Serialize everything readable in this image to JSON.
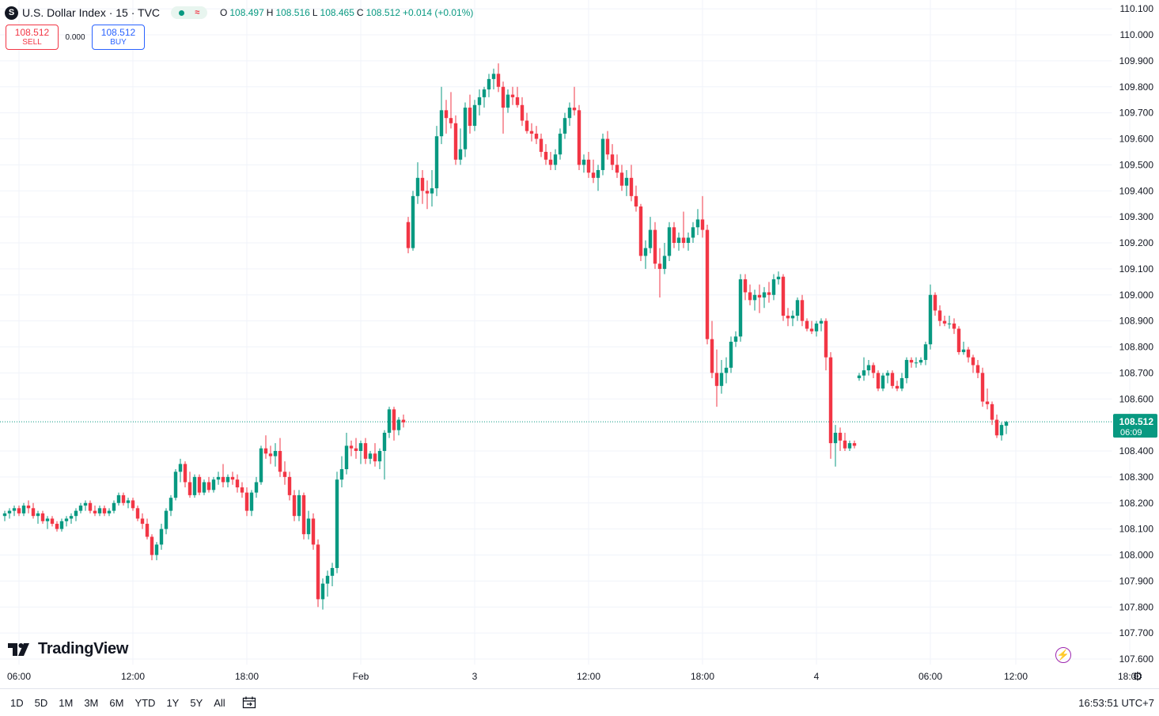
{
  "header": {
    "symbol_icon": "S",
    "title": "U.S. Dollar Index · 15 · TVC",
    "ohlc": {
      "o_label": "O",
      "o": "108.497",
      "h_label": "H",
      "h": "108.516",
      "l_label": "L",
      "l": "108.465",
      "c_label": "C",
      "c": "108.512",
      "change": "+0.014 (+0.01%)"
    }
  },
  "trade": {
    "sell_price": "108.512",
    "sell_label": "SELL",
    "spread": "0.000",
    "buy_price": "108.512",
    "buy_label": "BUY"
  },
  "logo_text": "TradingView",
  "range_buttons": [
    "1D",
    "5D",
    "1M",
    "3M",
    "6M",
    "YTD",
    "1Y",
    "5Y",
    "All"
  ],
  "clock": "16:53:51 UTC+7",
  "colors": {
    "up": "#089981",
    "down": "#f23645",
    "grid": "#f0f3fa",
    "sell": "#f23645",
    "buy": "#2962ff"
  },
  "chart_data": {
    "type": "candlestick",
    "title": "U.S. Dollar Index · 15 · TVC",
    "ylim": [
      107.57,
      110.13
    ],
    "y_ticks": [
      "110.100",
      "110.000",
      "109.900",
      "109.800",
      "109.700",
      "109.600",
      "109.500",
      "109.400",
      "109.300",
      "109.200",
      "109.100",
      "109.000",
      "108.900",
      "108.800",
      "108.700",
      "108.600",
      "108.400",
      "108.300",
      "108.200",
      "108.100",
      "108.000",
      "107.900",
      "107.800",
      "107.700",
      "107.600"
    ],
    "x_ticks": [
      {
        "label": "06:00",
        "idx": 0
      },
      {
        "label": "12:00",
        "idx": 24
      },
      {
        "label": "18:00",
        "idx": 48
      },
      {
        "label": "Feb",
        "idx": 72
      },
      {
        "label": "3",
        "idx": 96
      },
      {
        "label": "12:00",
        "idx": 120
      },
      {
        "label": "18:00",
        "idx": 144
      },
      {
        "label": "4",
        "idx": 168
      },
      {
        "label": "06:00",
        "idx": 192
      },
      {
        "label": "12:00",
        "idx": 210
      },
      {
        "label": "18:00",
        "idx": 234
      }
    ],
    "last_price": "108.512",
    "countdown": "06:09",
    "grid": true,
    "candles": [
      [
        108.15,
        108.17,
        108.13,
        108.16
      ],
      [
        108.16,
        108.18,
        108.14,
        108.17
      ],
      [
        108.17,
        108.19,
        108.15,
        108.18
      ],
      [
        108.18,
        108.19,
        108.15,
        108.16
      ],
      [
        108.16,
        108.2,
        108.15,
        108.19
      ],
      [
        108.19,
        108.21,
        108.16,
        108.18
      ],
      [
        108.18,
        108.2,
        108.14,
        108.15
      ],
      [
        108.15,
        108.17,
        108.12,
        108.16
      ],
      [
        108.16,
        108.17,
        108.12,
        108.13
      ],
      [
        108.13,
        108.15,
        108.1,
        108.14
      ],
      [
        108.14,
        108.15,
        108.11,
        108.12
      ],
      [
        108.12,
        108.13,
        108.09,
        108.1
      ],
      [
        108.1,
        108.14,
        108.09,
        108.13
      ],
      [
        108.13,
        108.15,
        108.11,
        108.14
      ],
      [
        108.14,
        108.16,
        108.12,
        108.15
      ],
      [
        108.15,
        108.18,
        108.13,
        108.17
      ],
      [
        108.17,
        108.2,
        108.16,
        108.19
      ],
      [
        108.19,
        108.21,
        108.17,
        108.2
      ],
      [
        108.2,
        108.21,
        108.16,
        108.17
      ],
      [
        108.17,
        108.19,
        108.15,
        108.16
      ],
      [
        108.16,
        108.19,
        108.15,
        108.18
      ],
      [
        108.18,
        108.19,
        108.15,
        108.16
      ],
      [
        108.16,
        108.18,
        108.15,
        108.17
      ],
      [
        108.17,
        108.21,
        108.16,
        108.2
      ],
      [
        108.2,
        108.24,
        108.19,
        108.23
      ],
      [
        108.23,
        108.24,
        108.19,
        108.2
      ],
      [
        108.2,
        108.22,
        108.18,
        108.21
      ],
      [
        108.21,
        108.22,
        108.17,
        108.18
      ],
      [
        108.18,
        108.19,
        108.13,
        108.14
      ],
      [
        108.14,
        108.16,
        108.1,
        108.12
      ],
      [
        108.12,
        108.14,
        108.06,
        108.07
      ],
      [
        108.07,
        108.08,
        107.98,
        108.0
      ],
      [
        108.0,
        108.05,
        107.98,
        108.04
      ],
      [
        108.04,
        108.12,
        108.02,
        108.1
      ],
      [
        108.1,
        108.18,
        108.08,
        108.17
      ],
      [
        108.17,
        108.23,
        108.15,
        108.22
      ],
      [
        108.22,
        108.33,
        108.21,
        108.32
      ],
      [
        108.32,
        108.37,
        108.28,
        108.35
      ],
      [
        108.35,
        108.36,
        108.26,
        108.28
      ],
      [
        108.28,
        108.32,
        108.22,
        108.23
      ],
      [
        108.23,
        108.31,
        108.22,
        108.3
      ],
      [
        108.3,
        108.31,
        108.23,
        108.24
      ],
      [
        108.24,
        108.29,
        108.23,
        108.28
      ],
      [
        108.28,
        108.3,
        108.24,
        108.25
      ],
      [
        108.25,
        108.3,
        108.24,
        108.29
      ],
      [
        108.29,
        108.32,
        108.27,
        108.3
      ],
      [
        108.3,
        108.35,
        108.26,
        108.28
      ],
      [
        108.28,
        108.31,
        108.26,
        108.3
      ],
      [
        108.3,
        108.32,
        108.27,
        108.29
      ],
      [
        108.29,
        108.31,
        108.24,
        108.26
      ],
      [
        108.26,
        108.28,
        108.22,
        108.24
      ],
      [
        108.24,
        108.26,
        108.15,
        108.17
      ],
      [
        108.17,
        108.25,
        108.15,
        108.24
      ],
      [
        108.24,
        108.3,
        108.22,
        108.28
      ],
      [
        108.28,
        108.42,
        108.27,
        108.41
      ],
      [
        108.41,
        108.46,
        108.37,
        108.39
      ],
      [
        108.39,
        108.42,
        108.35,
        108.38
      ],
      [
        108.38,
        108.43,
        108.34,
        108.4
      ],
      [
        108.4,
        108.45,
        108.3,
        108.32
      ],
      [
        108.32,
        108.36,
        108.27,
        108.3
      ],
      [
        108.3,
        108.32,
        108.21,
        108.23
      ],
      [
        108.23,
        108.25,
        108.13,
        108.15
      ],
      [
        108.15,
        108.25,
        108.13,
        108.23
      ],
      [
        108.23,
        108.24,
        108.06,
        108.08
      ],
      [
        108.08,
        108.17,
        108.06,
        108.14
      ],
      [
        108.14,
        108.16,
        108.02,
        108.04
      ],
      [
        108.04,
        108.06,
        107.8,
        107.83
      ],
      [
        107.83,
        107.91,
        107.79,
        107.89
      ],
      [
        107.89,
        107.94,
        107.84,
        107.92
      ],
      [
        107.92,
        107.97,
        107.88,
        107.95
      ],
      [
        107.95,
        108.32,
        107.93,
        108.29
      ],
      [
        108.29,
        108.38,
        108.26,
        108.33
      ],
      [
        108.33,
        108.47,
        108.31,
        108.42
      ],
      [
        108.42,
        108.44,
        108.38,
        108.41
      ],
      [
        108.41,
        108.45,
        108.37,
        108.4
      ],
      [
        108.4,
        108.44,
        108.35,
        108.43
      ],
      [
        108.43,
        108.45,
        108.35,
        108.37
      ],
      [
        108.37,
        108.4,
        108.35,
        108.39
      ],
      [
        108.39,
        108.43,
        108.34,
        108.36
      ],
      [
        108.36,
        108.41,
        108.33,
        108.4
      ],
      [
        108.4,
        108.48,
        108.29,
        108.47
      ],
      [
        108.47,
        108.57,
        108.45,
        108.56
      ],
      [
        108.56,
        108.57,
        108.44,
        108.48
      ],
      [
        108.48,
        108.53,
        108.46,
        108.52
      ],
      [
        108.52,
        108.54,
        108.49,
        108.51
      ],
      [
        109.28,
        109.3,
        109.16,
        109.18
      ],
      [
        109.18,
        109.4,
        109.17,
        109.38
      ],
      [
        109.38,
        109.51,
        109.35,
        109.45
      ],
      [
        109.45,
        109.48,
        109.35,
        109.4
      ],
      [
        109.4,
        109.44,
        109.33,
        109.39
      ],
      [
        109.39,
        109.48,
        109.34,
        109.41
      ],
      [
        109.41,
        109.65,
        109.38,
        109.61
      ],
      [
        109.61,
        109.8,
        109.58,
        109.71
      ],
      [
        109.71,
        109.75,
        109.62,
        109.68
      ],
      [
        109.68,
        109.78,
        109.64,
        109.66
      ],
      [
        109.66,
        109.69,
        109.5,
        109.52
      ],
      [
        109.52,
        109.64,
        109.5,
        109.56
      ],
      [
        109.56,
        109.74,
        109.53,
        109.72
      ],
      [
        109.72,
        109.77,
        109.62,
        109.65
      ],
      [
        109.65,
        109.75,
        109.63,
        109.73
      ],
      [
        109.73,
        109.79,
        109.69,
        109.76
      ],
      [
        109.76,
        109.8,
        109.72,
        109.79
      ],
      [
        109.79,
        109.85,
        109.76,
        109.83
      ],
      [
        109.83,
        109.87,
        109.79,
        109.85
      ],
      [
        109.85,
        109.89,
        109.78,
        109.8
      ],
      [
        109.8,
        109.82,
        109.62,
        109.72
      ],
      [
        109.72,
        109.79,
        109.7,
        109.77
      ],
      [
        109.77,
        109.8,
        109.73,
        109.76
      ],
      [
        109.76,
        109.8,
        109.72,
        109.73
      ],
      [
        109.73,
        109.76,
        109.65,
        109.67
      ],
      [
        109.67,
        109.7,
        109.62,
        109.63
      ],
      [
        109.63,
        109.66,
        109.59,
        109.62
      ],
      [
        109.62,
        109.65,
        109.58,
        109.6
      ],
      [
        109.6,
        109.62,
        109.53,
        109.55
      ],
      [
        109.55,
        109.58,
        109.5,
        109.52
      ],
      [
        109.52,
        109.55,
        109.48,
        109.5
      ],
      [
        109.5,
        109.56,
        109.48,
        109.54
      ],
      [
        109.54,
        109.64,
        109.52,
        109.62
      ],
      [
        109.62,
        109.7,
        109.6,
        109.68
      ],
      [
        109.68,
        109.74,
        109.65,
        109.72
      ],
      [
        109.72,
        109.8,
        109.69,
        109.71
      ],
      [
        109.71,
        109.73,
        109.48,
        109.5
      ],
      [
        109.5,
        109.54,
        109.47,
        109.52
      ],
      [
        109.52,
        109.55,
        109.45,
        109.47
      ],
      [
        109.47,
        109.52,
        109.43,
        109.45
      ],
      [
        109.45,
        109.5,
        109.4,
        109.48
      ],
      [
        109.48,
        109.62,
        109.46,
        109.6
      ],
      [
        109.6,
        109.63,
        109.52,
        109.54
      ],
      [
        109.54,
        109.58,
        109.48,
        109.5
      ],
      [
        109.5,
        109.54,
        109.45,
        109.47
      ],
      [
        109.47,
        109.5,
        109.4,
        109.42
      ],
      [
        109.42,
        109.48,
        109.38,
        109.45
      ],
      [
        109.45,
        109.5,
        109.36,
        109.38
      ],
      [
        109.38,
        109.42,
        109.32,
        109.34
      ],
      [
        109.34,
        109.35,
        109.13,
        109.15
      ],
      [
        109.15,
        109.21,
        109.1,
        109.18
      ],
      [
        109.18,
        109.3,
        109.16,
        109.25
      ],
      [
        109.25,
        109.28,
        109.1,
        109.12
      ],
      [
        109.12,
        109.18,
        108.99,
        109.1
      ],
      [
        109.1,
        109.2,
        109.08,
        109.15
      ],
      [
        109.15,
        109.28,
        109.13,
        109.26
      ],
      [
        109.26,
        109.28,
        109.18,
        109.2
      ],
      [
        109.2,
        109.24,
        109.17,
        109.22
      ],
      [
        109.22,
        109.32,
        109.18,
        109.2
      ],
      [
        109.2,
        109.24,
        109.17,
        109.22
      ],
      [
        109.22,
        109.28,
        109.2,
        109.26
      ],
      [
        109.26,
        109.33,
        109.23,
        109.29
      ],
      [
        109.29,
        109.38,
        109.22,
        109.25
      ],
      [
        109.25,
        109.27,
        108.81,
        108.83
      ],
      [
        108.83,
        108.9,
        108.68,
        108.7
      ],
      [
        108.7,
        108.79,
        108.57,
        108.65
      ],
      [
        108.65,
        108.75,
        108.62,
        108.7
      ],
      [
        108.7,
        108.76,
        108.66,
        108.72
      ],
      [
        108.72,
        108.84,
        108.7,
        108.82
      ],
      [
        108.82,
        108.86,
        108.8,
        108.84
      ],
      [
        108.84,
        109.08,
        108.82,
        109.06
      ],
      [
        109.06,
        109.08,
        108.98,
        109.01
      ],
      [
        109.01,
        109.04,
        108.96,
        108.98
      ],
      [
        108.98,
        109.02,
        108.94,
        109.0
      ],
      [
        109.0,
        109.04,
        108.93,
        108.99
      ],
      [
        108.99,
        109.03,
        108.95,
        109.01
      ],
      [
        109.01,
        109.05,
        108.97,
        109.0
      ],
      [
        109.0,
        109.08,
        108.98,
        109.06
      ],
      [
        109.06,
        109.09,
        109.04,
        109.07
      ],
      [
        109.07,
        109.08,
        108.9,
        108.92
      ],
      [
        108.92,
        108.95,
        108.88,
        108.91
      ],
      [
        108.91,
        108.94,
        108.88,
        108.92
      ],
      [
        108.92,
        108.99,
        108.9,
        108.98
      ],
      [
        108.98,
        109.0,
        108.88,
        108.9
      ],
      [
        108.9,
        108.91,
        108.86,
        108.87
      ],
      [
        108.87,
        108.9,
        108.85,
        108.86
      ],
      [
        108.86,
        108.9,
        108.84,
        108.89
      ],
      [
        108.89,
        108.91,
        108.86,
        108.9
      ],
      [
        108.9,
        108.91,
        108.71,
        108.76
      ],
      [
        108.76,
        108.78,
        108.37,
        108.43
      ],
      [
        108.43,
        108.5,
        108.34,
        108.47
      ],
      [
        108.47,
        108.49,
        108.4,
        108.44
      ],
      [
        108.44,
        108.47,
        108.4,
        108.41
      ],
      [
        108.41,
        108.44,
        108.4,
        108.43
      ],
      [
        108.43,
        108.44,
        108.41,
        108.42
      ],
      [
        108.68,
        108.7,
        108.67,
        108.69
      ],
      [
        108.69,
        108.76,
        108.67,
        108.71
      ],
      [
        108.71,
        108.75,
        108.69,
        108.73
      ],
      [
        108.73,
        108.74,
        108.68,
        108.7
      ],
      [
        108.7,
        108.71,
        108.63,
        108.64
      ],
      [
        108.64,
        108.7,
        108.63,
        108.69
      ],
      [
        108.69,
        108.71,
        108.66,
        108.7
      ],
      [
        108.7,
        108.71,
        108.64,
        108.65
      ],
      [
        108.65,
        108.67,
        108.63,
        108.64
      ],
      [
        108.64,
        108.7,
        108.63,
        108.68
      ],
      [
        108.68,
        108.76,
        108.66,
        108.75
      ],
      [
        108.75,
        108.76,
        108.72,
        108.74
      ],
      [
        108.74,
        108.76,
        108.72,
        108.74
      ],
      [
        108.74,
        108.76,
        108.73,
        108.75
      ],
      [
        108.75,
        108.82,
        108.73,
        108.81
      ],
      [
        108.81,
        109.04,
        108.79,
        109.0
      ],
      [
        109.0,
        109.01,
        108.92,
        108.94
      ],
      [
        108.94,
        108.96,
        108.88,
        108.9
      ],
      [
        108.9,
        108.92,
        108.88,
        108.89
      ],
      [
        108.89,
        108.92,
        108.87,
        108.89
      ],
      [
        108.89,
        108.91,
        108.85,
        108.87
      ],
      [
        108.87,
        108.88,
        108.77,
        108.78
      ],
      [
        108.78,
        108.82,
        108.77,
        108.79
      ],
      [
        108.79,
        108.8,
        108.74,
        108.76
      ],
      [
        108.76,
        108.77,
        108.7,
        108.73
      ],
      [
        108.73,
        108.75,
        108.68,
        108.7
      ],
      [
        108.7,
        108.72,
        108.57,
        108.59
      ],
      [
        108.59,
        108.64,
        108.56,
        108.58
      ],
      [
        108.58,
        108.59,
        108.5,
        108.52
      ],
      [
        108.52,
        108.54,
        108.45,
        108.46
      ],
      [
        108.46,
        108.51,
        108.44,
        108.5
      ],
      [
        108.497,
        108.516,
        108.465,
        108.512
      ]
    ]
  }
}
